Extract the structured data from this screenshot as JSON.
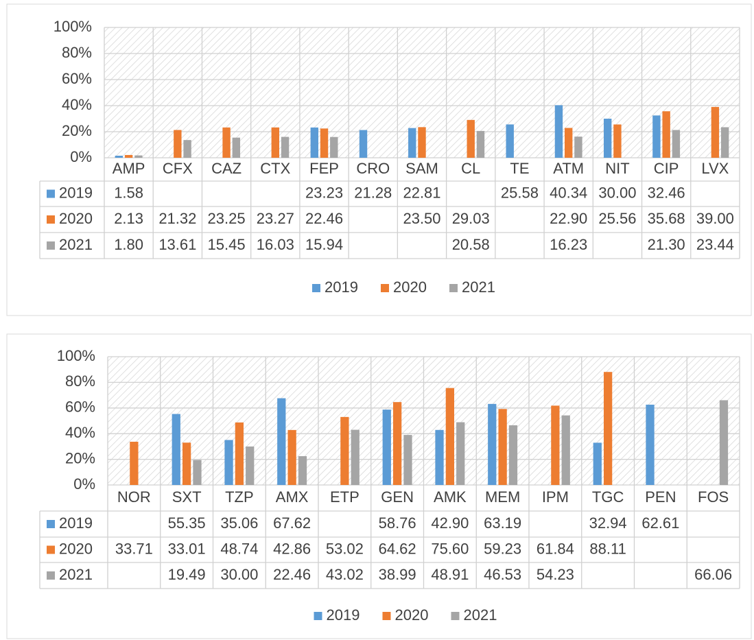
{
  "chart_data": [
    {
      "type": "bar",
      "categories": [
        "AMP",
        "CFX",
        "CAZ",
        "CTX",
        "FEP",
        "CRO",
        "SAM",
        "CL",
        "TE",
        "ATM",
        "NIT",
        "CIP",
        "LVX"
      ],
      "series": [
        {
          "name": "2019",
          "color": "#5b9bd5",
          "values": [
            1.58,
            null,
            null,
            null,
            23.23,
            21.28,
            22.81,
            null,
            25.58,
            40.34,
            30.0,
            32.46,
            null
          ],
          "value_labels": [
            "1.58",
            null,
            null,
            null,
            "23.23",
            "21.28",
            "22.81",
            null,
            "25.58",
            "40.34",
            "30.00",
            "32.46",
            null
          ]
        },
        {
          "name": "2020",
          "color": "#ed7d31",
          "values": [
            2.13,
            21.32,
            23.25,
            23.27,
            22.46,
            null,
            23.5,
            29.03,
            null,
            22.9,
            25.56,
            35.68,
            39.0
          ],
          "value_labels": [
            "2.13",
            "21.32",
            "23.25",
            "23.27",
            "22.46",
            null,
            "23.50",
            "29.03",
            null,
            "22.90",
            "25.56",
            "35.68",
            "39.00"
          ]
        },
        {
          "name": "2021",
          "color": "#a5a5a5",
          "values": [
            1.8,
            13.61,
            15.45,
            16.03,
            15.94,
            null,
            null,
            20.58,
            null,
            16.23,
            null,
            21.3,
            23.44
          ],
          "value_labels": [
            "1.80",
            "13.61",
            "15.45",
            "16.03",
            "15.94",
            null,
            null,
            "20.58",
            null,
            "16.23",
            null,
            "21.30",
            "23.44"
          ]
        }
      ],
      "ylim": [
        0,
        100
      ],
      "yticks": [
        {
          "value": 0,
          "label": "0%"
        },
        {
          "value": 20,
          "label": "20%"
        },
        {
          "value": 40,
          "label": "40%"
        },
        {
          "value": 60,
          "label": "60%"
        },
        {
          "value": 80,
          "label": "80%"
        },
        {
          "value": 100,
          "label": "100%"
        }
      ],
      "grid": true,
      "legend": "bottom"
    },
    {
      "type": "bar",
      "categories": [
        "NOR",
        "SXT",
        "TZP",
        "AMX",
        "ETP",
        "GEN",
        "AMK",
        "MEM",
        "IPM",
        "TGC",
        "PEN",
        "FOS"
      ],
      "series": [
        {
          "name": "2019",
          "color": "#5b9bd5",
          "values": [
            null,
            55.35,
            35.06,
            67.62,
            null,
            58.76,
            42.9,
            63.19,
            null,
            32.94,
            62.61,
            null
          ],
          "value_labels": [
            null,
            "55.35",
            "35.06",
            "67.62",
            null,
            "58.76",
            "42.90",
            "63.19",
            null,
            "32.94",
            "62.61",
            null
          ]
        },
        {
          "name": "2020",
          "color": "#ed7d31",
          "values": [
            33.71,
            33.01,
            48.74,
            42.86,
            53.02,
            64.62,
            75.6,
            59.23,
            61.84,
            88.11,
            null,
            null
          ],
          "value_labels": [
            "33.71",
            "33.01",
            "48.74",
            "42.86",
            "53.02",
            "64.62",
            "75.60",
            "59.23",
            "61.84",
            "88.11",
            null,
            null
          ]
        },
        {
          "name": "2021",
          "color": "#a5a5a5",
          "values": [
            null,
            19.49,
            30.0,
            22.46,
            43.02,
            38.99,
            48.91,
            46.53,
            54.23,
            null,
            null,
            66.06
          ],
          "value_labels": [
            null,
            "19.49",
            "30.00",
            "22.46",
            "43.02",
            "38.99",
            "48.91",
            "46.53",
            "54.23",
            null,
            null,
            "66.06"
          ]
        }
      ],
      "ylim": [
        0,
        100
      ],
      "yticks": [
        {
          "value": 0,
          "label": "0%"
        },
        {
          "value": 20,
          "label": "20%"
        },
        {
          "value": 40,
          "label": "40%"
        },
        {
          "value": 60,
          "label": "60%"
        },
        {
          "value": 80,
          "label": "80%"
        },
        {
          "value": 100,
          "label": "100%"
        }
      ],
      "grid": true,
      "legend": "bottom"
    }
  ]
}
